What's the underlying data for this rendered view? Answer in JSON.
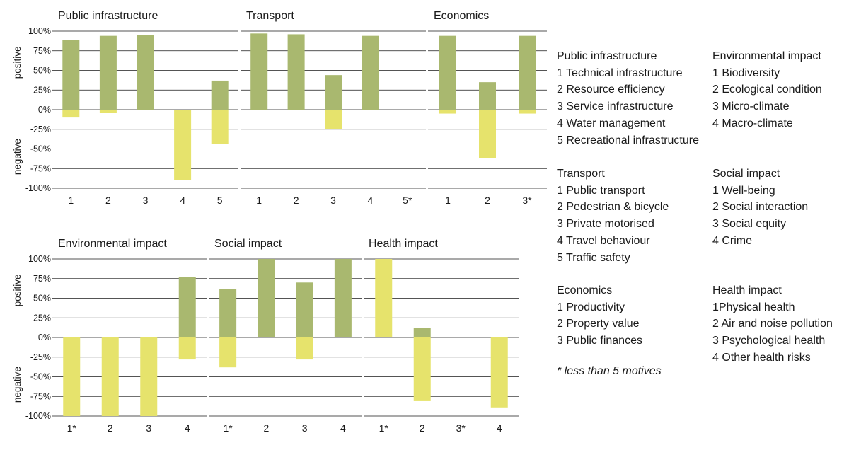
{
  "colors": {
    "positive": "#a9b86f",
    "negative": "#e6e36c",
    "grid": "#1a1a1a",
    "text": "#1a1a1a"
  },
  "y_axis": {
    "ticks": [
      "100%",
      "75%",
      "50%",
      "25%",
      "0%",
      "-25%",
      "-50%",
      "-75%",
      "-100%"
    ],
    "positive_label": "positive",
    "negative_label": "negative"
  },
  "chart_data": [
    {
      "type": "bar",
      "title": "Public infrastructure",
      "categories": [
        "1",
        "2",
        "3",
        "4",
        "5"
      ],
      "ylim": [
        -100,
        100
      ],
      "series": [
        {
          "name": "positive",
          "values": [
            89,
            94,
            95,
            0,
            37
          ]
        },
        {
          "name": "negative",
          "values": [
            -10,
            -4,
            0,
            -90,
            -44
          ]
        }
      ]
    },
    {
      "type": "bar",
      "title": "Transport",
      "categories": [
        "1",
        "2",
        "3",
        "4",
        "5*"
      ],
      "ylim": [
        -100,
        100
      ],
      "series": [
        {
          "name": "positive",
          "values": [
            97,
            96,
            44,
            94,
            0
          ]
        },
        {
          "name": "negative",
          "values": [
            0,
            0,
            -25,
            0,
            0
          ]
        }
      ]
    },
    {
      "type": "bar",
      "title": "Economics",
      "categories": [
        "1",
        "2",
        "3*"
      ],
      "ylim": [
        -100,
        100
      ],
      "series": [
        {
          "name": "positive",
          "values": [
            94,
            35,
            94
          ]
        },
        {
          "name": "negative",
          "values": [
            -5,
            -62,
            -5
          ]
        }
      ]
    },
    {
      "type": "bar",
      "title": "Environmental impact",
      "categories": [
        "1*",
        "2",
        "3",
        "4"
      ],
      "ylim": [
        -100,
        100
      ],
      "series": [
        {
          "name": "positive",
          "values": [
            0,
            0,
            0,
            77
          ]
        },
        {
          "name": "negative",
          "values": [
            -100,
            -100,
            -100,
            -28
          ]
        }
      ]
    },
    {
      "type": "bar",
      "title": "Social impact",
      "categories": [
        "1*",
        "2",
        "3",
        "4"
      ],
      "ylim": [
        -100,
        100
      ],
      "series": [
        {
          "name": "positive",
          "values": [
            62,
            100,
            70,
            100
          ]
        },
        {
          "name": "negative",
          "values": [
            -38,
            0,
            -28,
            0
          ]
        }
      ]
    },
    {
      "type": "bar",
      "title": "Health impact",
      "categories": [
        "1*",
        "2",
        "3*",
        "4"
      ],
      "ylim": [
        -100,
        100
      ],
      "series": [
        {
          "name": "negative_filled",
          "values": [
            100,
            0,
            0,
            0
          ]
        },
        {
          "name": "positive",
          "values": [
            0,
            12,
            0,
            0
          ]
        },
        {
          "name": "negative",
          "values": [
            0,
            -81,
            0,
            -89
          ]
        }
      ]
    }
  ],
  "legend_blocks": [
    {
      "title": "Public infrastructure",
      "items": [
        "1 Technical infrastructure",
        "2 Resource efficiency",
        "3 Service infrastructure",
        "4 Water management",
        "5 Recreational infrastructure"
      ]
    },
    {
      "title": "Environmental impact",
      "items": [
        "1 Biodiversity",
        "2 Ecological condition",
        "3 Micro-climate",
        "4 Macro-climate"
      ]
    },
    {
      "title": "Transport",
      "items": [
        "1 Public transport",
        "2 Pedestrian & bicycle",
        "3 Private motorised",
        "4 Travel behaviour",
        "5 Traffic safety"
      ]
    },
    {
      "title": "Social impact",
      "items": [
        "1 Well-being",
        "2 Social interaction",
        "3 Social equity",
        "4 Crime"
      ]
    },
    {
      "title": "Economics",
      "items": [
        "1 Productivity",
        "2 Property value",
        "3 Public finances"
      ]
    },
    {
      "title": "Health impact",
      "items": [
        "1Physical health",
        "2 Air and noise pollution",
        "3 Psychological health",
        "4 Other health risks"
      ]
    }
  ],
  "note": "* less than 5 motives"
}
